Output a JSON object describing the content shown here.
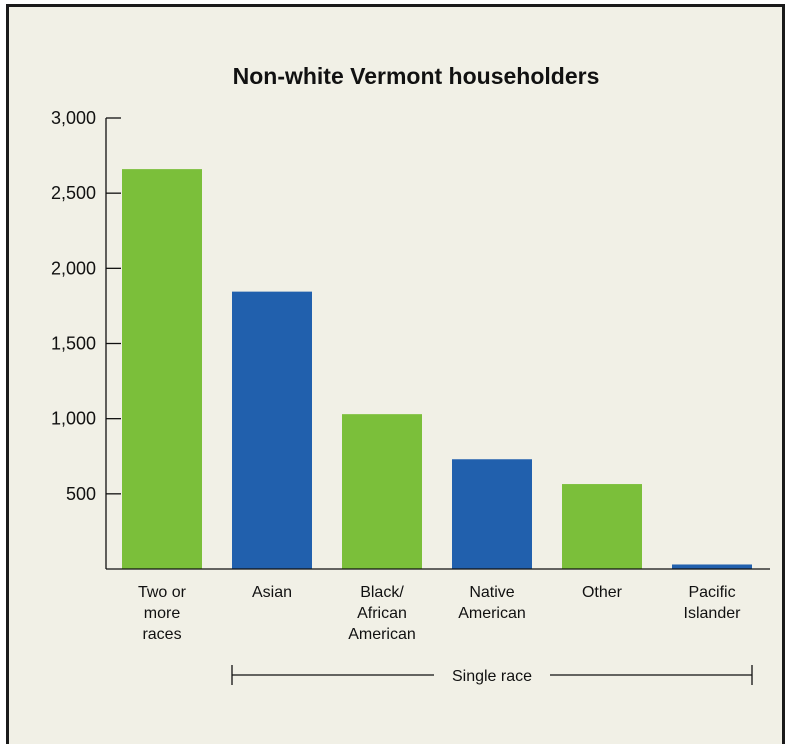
{
  "chart_data": {
    "type": "bar",
    "title": "Non-white Vermont householders",
    "xlabel": "",
    "ylabel": "",
    "ylim": [
      0,
      3000
    ],
    "yticks": [
      500,
      1000,
      1500,
      2000,
      2500,
      3000
    ],
    "ytick_labels": [
      "500",
      "1,000",
      "1,500",
      "2,000",
      "2,500",
      "3,000"
    ],
    "grid": false,
    "categories": [
      "Two or more races",
      "Asian",
      "Black/ African American",
      "Native American",
      "Other",
      "Pacific Islander"
    ],
    "category_label_lines": [
      [
        "Two or",
        "more",
        "races"
      ],
      [
        "Asian"
      ],
      [
        "Black/",
        "African",
        "American"
      ],
      [
        "Native",
        "American"
      ],
      [
        "Other"
      ],
      [
        "Pacific",
        "Islander"
      ]
    ],
    "values": [
      2660,
      1845,
      1030,
      730,
      565,
      30
    ],
    "bar_colors": [
      "#7bbf3a",
      "#2160ad",
      "#7bbf3a",
      "#2160ad",
      "#7bbf3a",
      "#2160ad"
    ],
    "group_bracket": {
      "label": "Single race",
      "from_category": "Asian",
      "to_category": "Pacific Islander"
    }
  },
  "colors": {
    "background": "#f1f0e6",
    "green": "#7bbf3a",
    "blue": "#2160ad",
    "text": "#111111"
  }
}
